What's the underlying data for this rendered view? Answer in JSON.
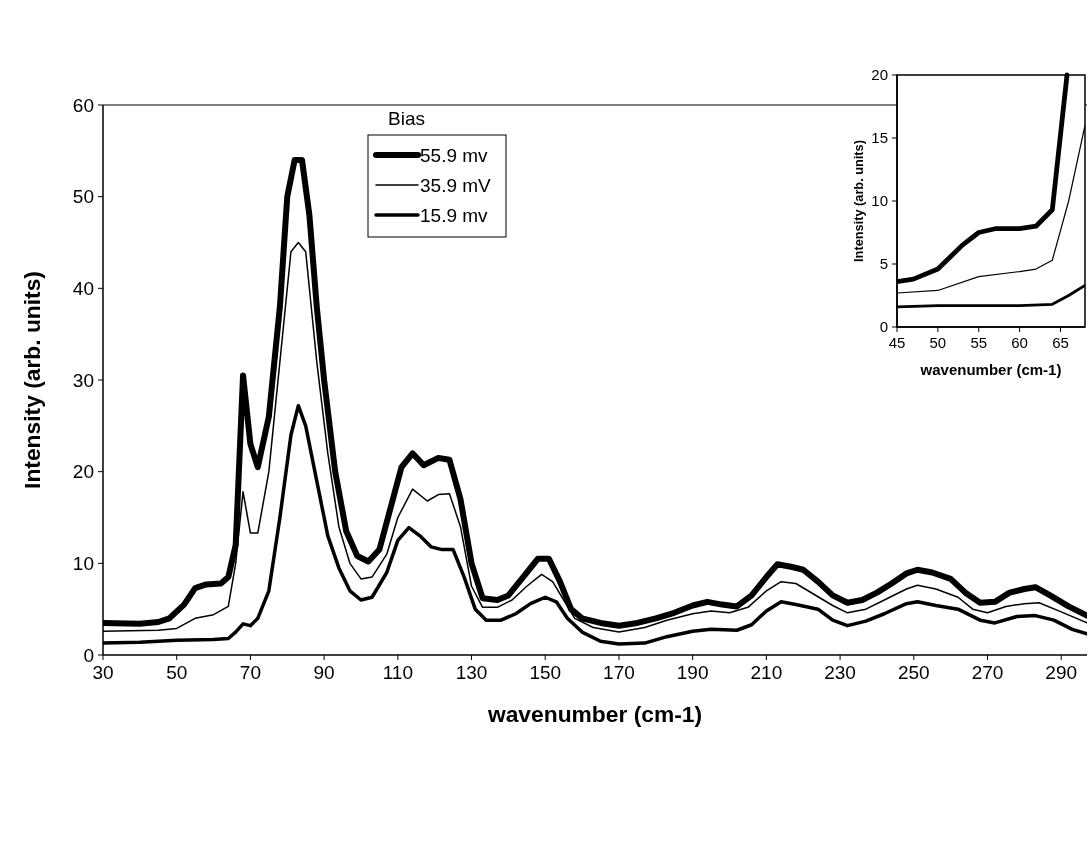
{
  "chart_data": [
    {
      "type": "line",
      "xlabel": "wavenumber (cm-1)",
      "ylabel": "Intensity (arb. units)",
      "xlim": [
        30,
        297
      ],
      "ylim": [
        0,
        60
      ],
      "xticks": [
        30,
        50,
        70,
        90,
        110,
        130,
        150,
        170,
        190,
        210,
        230,
        250,
        270,
        290
      ],
      "yticks": [
        0,
        10,
        20,
        30,
        40,
        50,
        60
      ],
      "legend": "top",
      "legend_title": "Bias",
      "series": [
        {
          "name": "55.9 mv",
          "color": "#000000",
          "x": [
            30,
            40,
            45,
            48,
            52,
            55,
            58,
            62,
            64,
            66,
            68,
            70,
            72,
            75,
            78,
            80,
            82,
            84,
            86,
            88,
            90,
            93,
            96,
            99,
            102,
            105,
            108,
            111,
            114,
            117,
            121,
            124,
            127,
            130,
            133,
            137,
            140,
            144,
            148,
            151,
            154,
            157,
            160,
            165,
            170,
            175,
            180,
            185,
            190,
            194,
            198,
            202,
            206,
            210,
            213,
            217,
            220,
            224,
            228,
            232,
            236,
            240,
            244,
            248,
            251,
            255,
            260,
            264,
            268,
            272,
            276,
            280,
            283,
            287,
            292,
            297
          ],
          "values": [
            3.5,
            3.4,
            3.6,
            4,
            5.5,
            7.3,
            7.7,
            7.8,
            8.5,
            12,
            30.5,
            23,
            20.5,
            26,
            38,
            50,
            54,
            54,
            48,
            38,
            30,
            20,
            13.5,
            10.8,
            10.2,
            11.5,
            16,
            20.5,
            22,
            20.7,
            21.5,
            21.3,
            17,
            10,
            6.2,
            6,
            6.5,
            8.5,
            10.5,
            10.5,
            8,
            5,
            4,
            3.5,
            3.2,
            3.5,
            4,
            4.6,
            5.4,
            5.8,
            5.5,
            5.3,
            6.5,
            8.5,
            9.9,
            9.6,
            9.3,
            8,
            6.5,
            5.7,
            6,
            6.8,
            7.8,
            8.9,
            9.3,
            9,
            8.3,
            6.8,
            5.7,
            5.8,
            6.8,
            7.2,
            7.4,
            6.5,
            5.3,
            4.3
          ]
        },
        {
          "name": "35.9 mV",
          "color": "#000000",
          "x": [
            30,
            45,
            50,
            55,
            60,
            64,
            66,
            68,
            70,
            72,
            75,
            78,
            81,
            83,
            85,
            88,
            91,
            94,
            97,
            100,
            103,
            107,
            110,
            114,
            118,
            121,
            124,
            127,
            130,
            133,
            137,
            141,
            145,
            149,
            152,
            155,
            158,
            163,
            170,
            177,
            183,
            190,
            195,
            200,
            205,
            210,
            214,
            218,
            223,
            228,
            232,
            237,
            242,
            248,
            251,
            256,
            262,
            266,
            270,
            275,
            280,
            284,
            290,
            297
          ],
          "values": [
            2.6,
            2.7,
            2.9,
            4,
            4.4,
            5.3,
            10,
            17.8,
            13.3,
            13.3,
            20,
            32,
            44,
            45,
            44,
            32,
            22,
            14,
            10,
            8.3,
            8.5,
            11,
            15,
            18.1,
            16.8,
            17.5,
            17.6,
            14,
            7.5,
            5.2,
            5.2,
            6,
            7.5,
            8.8,
            8,
            6,
            4,
            3,
            2.5,
            3,
            3.8,
            4.5,
            4.8,
            4.6,
            5.2,
            7,
            8,
            7.8,
            6.6,
            5.4,
            4.6,
            5,
            6,
            7.2,
            7.6,
            7.2,
            6.3,
            5,
            4.6,
            5.3,
            5.6,
            5.7,
            4.7,
            3.5
          ]
        },
        {
          "name": "15.9 mv",
          "color": "#000000",
          "x": [
            30,
            40,
            50,
            60,
            64,
            66,
            68,
            70,
            72,
            75,
            78,
            81,
            83,
            85,
            88,
            91,
            94,
            97,
            100,
            103,
            107,
            110,
            113,
            116,
            119,
            122,
            125,
            128,
            131,
            134,
            138,
            142,
            146,
            150,
            153,
            156,
            160,
            165,
            170,
            177,
            183,
            190,
            195,
            202,
            206,
            210,
            214,
            218,
            224,
            228,
            232,
            237,
            242,
            248,
            251,
            256,
            262,
            268,
            272,
            278,
            283,
            288,
            293,
            297
          ],
          "values": [
            1.3,
            1.4,
            1.6,
            1.7,
            1.8,
            2.5,
            3.4,
            3.2,
            4,
            7,
            15,
            24,
            27.2,
            25,
            19,
            13,
            9.5,
            7,
            6,
            6.3,
            9,
            12.5,
            13.9,
            13,
            11.8,
            11.5,
            11.5,
            8.5,
            5,
            3.8,
            3.8,
            4.5,
            5.6,
            6.3,
            5.8,
            4,
            2.5,
            1.5,
            1.2,
            1.3,
            2,
            2.6,
            2.8,
            2.7,
            3.3,
            4.8,
            5.8,
            5.5,
            5,
            3.8,
            3.2,
            3.7,
            4.5,
            5.6,
            5.8,
            5.4,
            5,
            3.8,
            3.5,
            4.2,
            4.3,
            3.8,
            2.8,
            2.3
          ]
        }
      ]
    },
    {
      "type": "line",
      "xlabel": "wavenumber (cm-1)",
      "ylabel": "Intensity (arb. units)",
      "xlim": [
        45,
        68
      ],
      "ylim": [
        0,
        20
      ],
      "xticks": [
        45,
        50,
        55,
        60,
        65
      ],
      "yticks": [
        0,
        5,
        10,
        15,
        20
      ],
      "series": [
        {
          "color": "#000000",
          "x": [
            45,
            47,
            50,
            53,
            55,
            57,
            60,
            62,
            64,
            65.8
          ],
          "values": [
            3.6,
            3.8,
            4.6,
            6.5,
            7.5,
            7.8,
            7.8,
            8,
            9.3,
            20
          ]
        },
        {
          "color": "#000000",
          "x": [
            45,
            50,
            55,
            60,
            62,
            64,
            66,
            68
          ],
          "values": [
            2.7,
            2.9,
            4,
            4.4,
            4.6,
            5.3,
            10,
            16
          ]
        },
        {
          "color": "#000000",
          "x": [
            45,
            50,
            55,
            60,
            64,
            66,
            68
          ],
          "values": [
            1.6,
            1.7,
            1.7,
            1.7,
            1.8,
            2.5,
            3.3
          ]
        }
      ]
    }
  ]
}
